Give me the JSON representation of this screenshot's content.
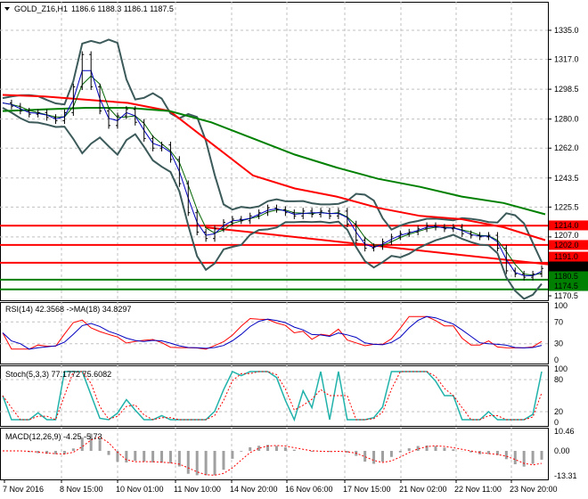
{
  "header": {
    "symbol": "GOLD_Z16,H1",
    "ohlc": "1186.6 1188.3 1186.1 1187.5"
  },
  "colors": {
    "bull_line": "#ff0000",
    "ma_slow": "#ff0000",
    "ma_200": "#008000",
    "bands": "#3c5a5a",
    "ma_fast": "#0000c0",
    "support": "#008000",
    "resistance": "#ff0000",
    "stoch_main": "#20b2aa",
    "signal": "#ff0000"
  },
  "chart_data": [
    {
      "type": "line",
      "panel": "price",
      "title": "GOLD_Z16,H1",
      "y_ticks": [
        "1335.0",
        "1317.0",
        "1298.5",
        "1280.0",
        "1262.0",
        "1243.5",
        "1225.5",
        "1207.0",
        "1170.5"
      ],
      "ylim": [
        1170.5,
        1335.0
      ],
      "x_ticks": [
        "7 Nov 2016",
        "8 Nov 15:00",
        "10 Nov 01:00",
        "11 Nov 10:00",
        "14 Nov 20:00",
        "16 Nov 06:00",
        "17 Nov 15:00",
        "21 Nov 02:00",
        "22 Nov 11:00",
        "23 Nov 20:00"
      ],
      "close": [
        1290,
        1288,
        1285,
        1283,
        1284,
        1281,
        1279,
        1284,
        1300,
        1320,
        1300,
        1285,
        1276,
        1282,
        1286,
        1278,
        1268,
        1262,
        1264,
        1255,
        1240,
        1222,
        1210,
        1206,
        1212,
        1216,
        1218,
        1217,
        1220,
        1222,
        1225,
        1224,
        1222,
        1220,
        1223,
        1221,
        1223,
        1220,
        1223,
        1215,
        1205,
        1200,
        1201,
        1204,
        1207,
        1209,
        1210,
        1212,
        1214,
        1213,
        1212,
        1213,
        1209,
        1208,
        1207,
        1208,
        1200,
        1186,
        1184,
        1182,
        1184,
        1187.5
      ],
      "ma_slow": [
        1295,
        1294,
        1292,
        1290,
        1285,
        1265,
        1245,
        1237,
        1232,
        1225,
        1220,
        1218,
        1213,
        1205
      ],
      "ma_200": [
        1285,
        1286,
        1287,
        1287,
        1285,
        1278,
        1268,
        1258,
        1250,
        1243,
        1238,
        1232,
        1228,
        1221
      ],
      "levels": [
        {
          "price": "1214.0",
          "kind": "resistance"
        },
        {
          "price": "1202.0",
          "kind": "resistance"
        },
        {
          "price": "1191.0",
          "kind": "resistance"
        },
        {
          "price": "1187.5",
          "kind": "current"
        },
        {
          "price": "1180.5",
          "kind": "support"
        },
        {
          "price": "1174.5",
          "kind": "support"
        }
      ],
      "trendline": {
        "from": 1213,
        "to": 1190
      }
    },
    {
      "type": "line",
      "panel": "rsi",
      "title": "RSI(14) 42.3568  ->MA(18) 34.8297",
      "y_ticks": [
        "100",
        "70",
        "30",
        "0"
      ],
      "ylim": [
        0,
        100
      ]
    },
    {
      "type": "line",
      "panel": "stoch",
      "title": "Stoch(5,3,3) 77.1772 75.6082",
      "y_ticks": [
        "100",
        "80",
        "20",
        "0"
      ],
      "ylim": [
        0,
        100
      ]
    },
    {
      "type": "bar",
      "panel": "macd",
      "title": "MACD(12,26,9) -4.25 -5.73",
      "y_ticks": [
        "10.46",
        "0.00",
        "-13.31"
      ],
      "ylim": [
        -13.31,
        10.46
      ]
    }
  ]
}
